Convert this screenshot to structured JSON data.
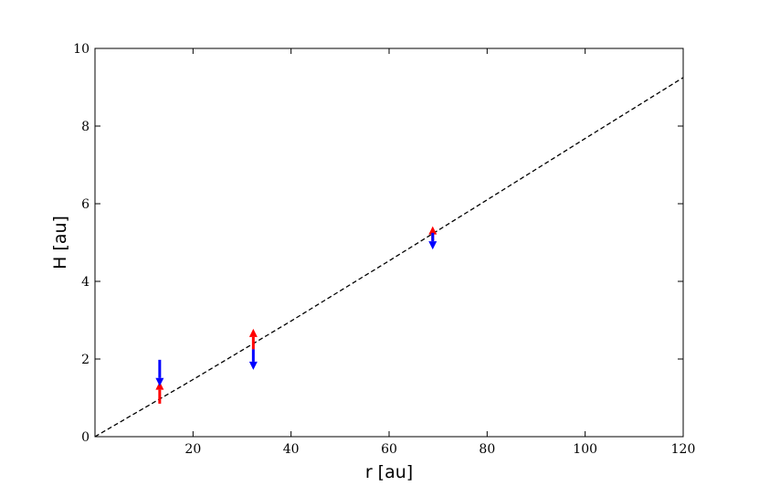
{
  "chart_data": {
    "type": "scatter",
    "title": "",
    "xlabel": "r [au]",
    "ylabel": "H [au]",
    "xlim": [
      0,
      120
    ],
    "ylim": [
      0,
      10
    ],
    "xticks": [
      20,
      40,
      60,
      80,
      100,
      120
    ],
    "yticks": [
      0,
      2,
      4,
      6,
      8,
      10
    ],
    "grid": false,
    "legend": "none",
    "reference_line": {
      "style": "dashed",
      "color": "#000000",
      "points": [
        [
          0,
          0
        ],
        [
          20,
          1.47
        ],
        [
          40,
          2.98
        ],
        [
          60,
          4.53
        ],
        [
          80,
          6.1
        ],
        [
          100,
          7.68
        ],
        [
          120,
          9.25
        ]
      ]
    },
    "upper_limits": {
      "color": "#0000ff",
      "direction": "down",
      "points": [
        {
          "x": 13.2,
          "y": 1.98,
          "tip": 1.3
        },
        {
          "x": 32.3,
          "y": 2.25,
          "tip": 1.72
        },
        {
          "x": 68.9,
          "y": 5.25,
          "tip": 4.82
        }
      ]
    },
    "lower_limits": {
      "color": "#ff0000",
      "direction": "up",
      "points": [
        {
          "x": 13.2,
          "y": 0.85,
          "tip": 1.42
        },
        {
          "x": 32.3,
          "y": 2.25,
          "tip": 2.78
        },
        {
          "x": 68.9,
          "y": 5.05,
          "tip": 5.42
        }
      ]
    }
  }
}
